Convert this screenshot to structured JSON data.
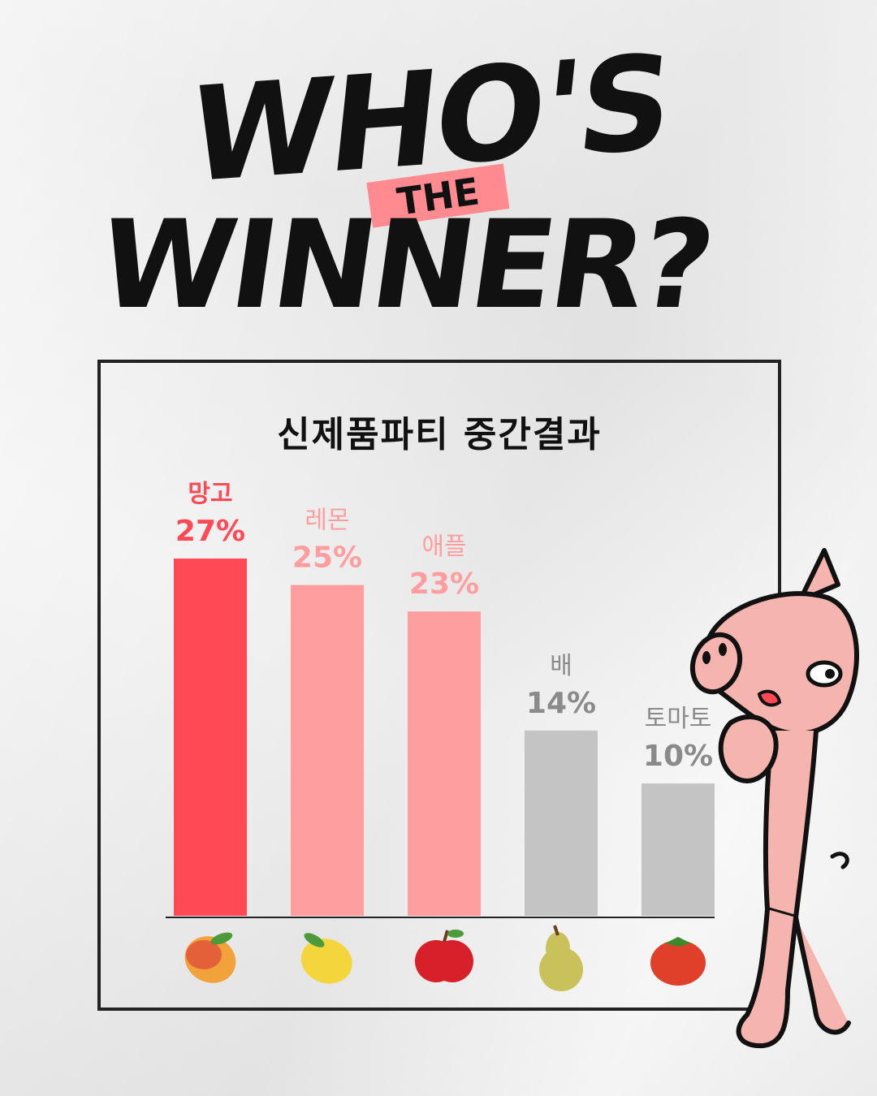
{
  "header": {
    "line1": "WHO'S",
    "ribbon": "THE",
    "line2": "WINNER?"
  },
  "colors": {
    "winner": "#ff4a55",
    "runner": "#ff9d9f",
    "others": "#c4c4c4",
    "ribbon": "#ff8a8f",
    "mascot": "#f5b5ae"
  },
  "chart_data": {
    "type": "bar",
    "title": "신제품파티 중간결과",
    "categories": [
      "망고",
      "레몬",
      "애플",
      "배",
      "토마토"
    ],
    "values": [
      27,
      25,
      23,
      14,
      10
    ],
    "value_labels": [
      "27%",
      "25%",
      "23%",
      "14%",
      "10%"
    ],
    "bar_colors": [
      "#ff4a55",
      "#ff9d9f",
      "#ff9d9f",
      "#c4c4c4",
      "#c4c4c4"
    ],
    "label_colors": [
      "#ff4a55",
      "#ff9d9f",
      "#ff9d9f",
      "#8a8a8a",
      "#8a8a8a"
    ],
    "icons": [
      "mango-icon",
      "lemon-icon",
      "apple-icon",
      "pear-icon",
      "tomato-icon"
    ],
    "ylim": [
      0,
      27
    ],
    "grid": false,
    "legend": "none",
    "xlabel": "",
    "ylabel": ""
  }
}
